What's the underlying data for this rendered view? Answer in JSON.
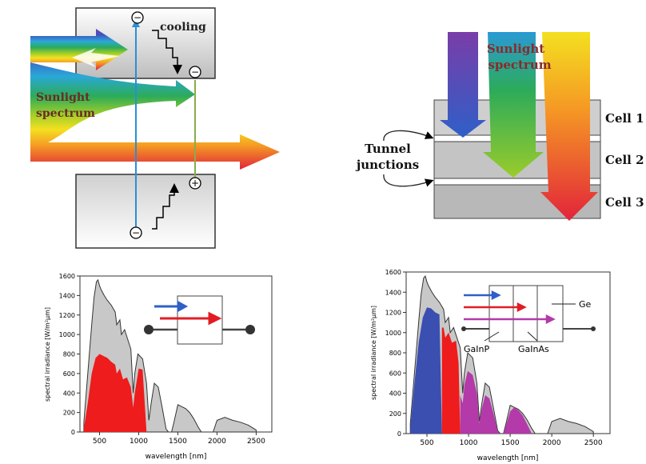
{
  "panel_band_diagram": {
    "cooling_label": "cooling",
    "sunlight_label_line1": "Sunlight",
    "sunlight_label_line2": "spectrum",
    "electron_sign": "−",
    "hole_sign": "+"
  },
  "panel_multijunction_stack": {
    "sunlight_label_line1": "Sunlight",
    "sunlight_label_line2": "spectrum",
    "tunnel_label_line1": "Tunnel",
    "tunnel_label_line2": "junctions",
    "cells": [
      "Cell 1",
      "Cell 2",
      "Cell 3"
    ]
  },
  "chart_data": [
    {
      "type": "area",
      "xlabel": "wavelength [nm]",
      "ylabel": "spectral irradiance [W/m²µm]",
      "xlim": [
        250,
        2700
      ],
      "ylim": [
        0,
        1600
      ],
      "xticks": [
        500,
        1000,
        1500,
        2000,
        2500
      ],
      "yticks": [
        0,
        200,
        400,
        600,
        800,
        1000,
        1200,
        1400,
        1600
      ],
      "series": [
        {
          "role": "solar spectrum",
          "color": "#c8c8c8",
          "x": [
            300,
            350,
            400,
            430,
            460,
            480,
            500,
            520,
            560,
            600,
            650,
            700,
            720,
            760,
            780,
            820,
            900,
            930,
            950,
            990,
            1050,
            1100,
            1130,
            1160,
            1200,
            1250,
            1300,
            1350,
            1380,
            1420,
            1450,
            1500,
            1550,
            1600,
            1650,
            1700,
            1760,
            1800,
            1850,
            1950,
            2000,
            2100,
            2200,
            2300,
            2400,
            2500
          ],
          "y": [
            100,
            600,
            1100,
            1380,
            1540,
            1560,
            1500,
            1460,
            1400,
            1350,
            1300,
            1230,
            1100,
            1150,
            1000,
            1050,
            850,
            400,
            600,
            800,
            750,
            500,
            120,
            300,
            500,
            460,
            250,
            30,
            0,
            0,
            100,
            280,
            260,
            240,
            200,
            140,
            50,
            0,
            0,
            0,
            120,
            150,
            120,
            100,
            70,
            20
          ]
        },
        {
          "role": "single junction absorbed",
          "color": "#ee1c1c",
          "x": [
            300,
            350,
            400,
            450,
            500,
            550,
            600,
            650,
            700,
            720,
            760,
            800,
            850,
            900,
            930,
            950,
            1000,
            1050,
            1100
          ],
          "y": [
            40,
            300,
            600,
            760,
            800,
            780,
            760,
            720,
            690,
            600,
            650,
            540,
            560,
            460,
            250,
            400,
            650,
            640,
            0
          ]
        }
      ],
      "inset": {
        "arrow_colors": [
          "#2f5fc8",
          "#e21c24"
        ]
      }
    },
    {
      "type": "area",
      "xlabel": "wavelength [nm]",
      "ylabel": "spectral irradiance [W/m²µm]",
      "xlim": [
        250,
        2700
      ],
      "ylim": [
        0,
        1600
      ],
      "xticks": [
        500,
        1000,
        1500,
        2000,
        2500
      ],
      "yticks": [
        0,
        200,
        400,
        600,
        800,
        1000,
        1200,
        1400,
        1600
      ],
      "series": [
        {
          "role": "solar spectrum",
          "color": "#c8c8c8",
          "x": [
            300,
            350,
            400,
            430,
            460,
            480,
            500,
            520,
            560,
            600,
            650,
            700,
            720,
            760,
            780,
            820,
            900,
            930,
            950,
            990,
            1050,
            1100,
            1130,
            1160,
            1200,
            1250,
            1300,
            1350,
            1380,
            1420,
            1450,
            1500,
            1550,
            1600,
            1650,
            1700,
            1760,
            1800,
            1850,
            1950,
            2000,
            2100,
            2200,
            2300,
            2400,
            2500
          ],
          "y": [
            100,
            600,
            1100,
            1380,
            1540,
            1560,
            1500,
            1460,
            1400,
            1350,
            1300,
            1230,
            1100,
            1150,
            1000,
            1050,
            850,
            400,
            600,
            800,
            750,
            500,
            120,
            300,
            500,
            460,
            250,
            30,
            0,
            0,
            100,
            280,
            260,
            240,
            200,
            140,
            50,
            0,
            0,
            0,
            120,
            150,
            120,
            100,
            70,
            20
          ]
        },
        {
          "role": "GaInP absorbed",
          "color": "#3a4fb0",
          "x": [
            300,
            350,
            400,
            450,
            500,
            550,
            600,
            650,
            680
          ],
          "y": [
            60,
            500,
            900,
            1150,
            1250,
            1240,
            1200,
            1180,
            0
          ]
        },
        {
          "role": "GaInAs absorbed",
          "color": "#ee1c1c",
          "x": [
            680,
            700,
            720,
            760,
            800,
            850,
            880,
            900
          ],
          "y": [
            1050,
            1050,
            950,
            1000,
            900,
            920,
            700,
            0
          ]
        },
        {
          "role": "Ge absorbed",
          "color": "#b33aa8",
          "x": [
            900,
            930,
            950,
            990,
            1050,
            1100,
            1130,
            1160,
            1200,
            1250,
            1300,
            1350,
            1380,
            1420,
            1450,
            1500,
            1550,
            1600,
            1650,
            1700,
            1760
          ],
          "y": [
            380,
            300,
            480,
            620,
            580,
            400,
            100,
            250,
            380,
            350,
            200,
            20,
            0,
            0,
            80,
            220,
            260,
            230,
            180,
            100,
            0
          ]
        }
      ],
      "inset": {
        "labels": [
          "Ge",
          "GaInP",
          "GaInAs"
        ],
        "arrow_colors": [
          "#2f5fc8",
          "#e21c24",
          "#b33aa8"
        ]
      }
    }
  ]
}
